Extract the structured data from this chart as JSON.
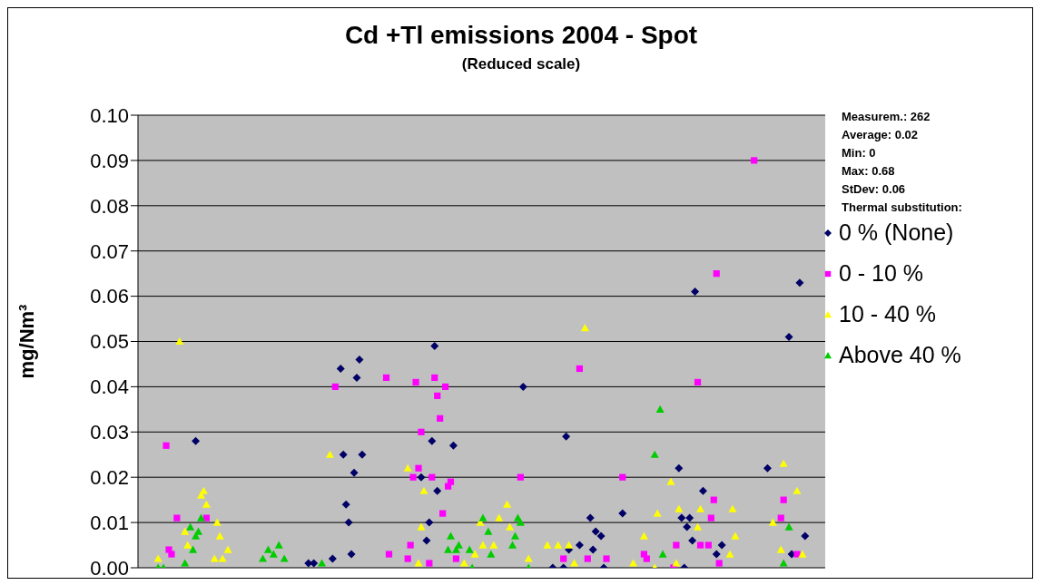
{
  "chart_data": {
    "type": "scatter",
    "title": "Cd +Tl emissions 2004 - Spot",
    "subtitle": "(Reduced scale)",
    "ylabel": "mg/Nm³",
    "legend_title": "Thermal substitution:",
    "annotations": [
      "Measurem.: 262",
      "Average: 0.02",
      "Min: 0",
      "Max: 0.68",
      "StDev: 0.06"
    ],
    "categories": [
      null,
      null,
      null,
      null,
      null,
      null,
      null,
      null,
      null,
      null,
      null,
      null,
      null,
      null,
      null,
      null,
      null,
      null,
      null,
      null,
      null,
      null,
      null,
      null,
      null,
      null,
      null,
      null,
      null,
      null,
      null,
      null,
      null,
      null,
      null,
      null,
      null,
      null,
      null,
      null,
      null,
      null,
      null,
      null,
      null,
      null,
      null,
      null,
      null,
      null,
      null,
      null,
      null,
      null,
      null,
      null,
      null,
      null,
      null,
      null,
      null,
      null,
      null,
      null,
      null,
      null,
      null,
      null,
      null,
      null,
      null,
      null,
      null,
      null,
      null,
      null,
      null,
      null,
      null,
      null,
      null,
      null,
      null,
      null,
      null,
      null,
      null,
      null,
      null,
      null,
      null,
      null,
      null,
      null,
      null,
      null,
      null,
      null,
      null,
      null,
      null,
      null,
      null,
      null,
      null,
      null,
      null,
      null,
      null,
      null,
      null,
      null,
      null,
      null,
      null,
      null,
      null,
      null,
      null,
      null,
      null,
      null,
      null,
      null,
      null,
      null,
      null,
      null,
      null,
      null,
      null,
      null,
      null,
      null,
      null,
      null,
      null,
      null,
      null,
      null,
      null,
      null,
      null,
      null,
      null,
      null,
      null,
      null,
      null,
      null,
      null,
      null,
      null,
      null,
      null,
      null,
      null,
      null,
      null,
      null,
      null,
      null,
      null,
      null,
      null,
      null,
      null,
      null,
      null,
      null,
      null,
      null,
      null,
      null,
      null,
      null,
      null,
      null,
      null,
      null,
      null,
      null,
      null,
      null,
      null,
      null,
      null,
      null,
      null,
      null,
      null,
      null,
      null,
      null,
      null,
      null,
      null,
      null,
      null,
      null,
      null,
      null,
      null,
      null,
      null,
      null,
      null,
      null,
      null,
      null,
      null,
      null,
      null,
      null,
      null,
      null,
      null,
      null,
      null,
      null,
      null,
      null,
      null,
      null,
      null,
      null,
      null,
      null,
      null,
      null,
      null,
      null,
      null,
      null,
      null,
      null,
      null,
      null,
      null,
      null,
      null,
      null,
      null,
      null,
      null,
      null,
      null,
      null,
      null,
      null,
      null,
      null,
      null,
      null,
      null,
      null
    ],
    "series": [
      {
        "name": "0 % (None)",
        "color": "#000066",
        "marker": "diamond",
        "values": [
          null,
          null,
          null,
          null,
          null,
          null,
          null,
          null,
          null,
          null,
          null,
          null,
          null,
          null,
          null,
          null,
          null,
          null,
          null,
          null,
          null,
          0.028,
          null,
          null,
          null,
          null,
          null,
          null,
          null,
          null,
          null,
          null,
          null,
          null,
          null,
          null,
          null,
          null,
          null,
          null,
          null,
          null,
          null,
          null,
          null,
          null,
          null,
          null,
          null,
          null,
          null,
          null,
          null,
          null,
          null,
          null,
          null,
          null,
          null,
          null,
          null,
          null,
          null,
          0.001,
          null,
          0.001,
          null,
          null,
          null,
          null,
          null,
          null,
          0.002,
          null,
          null,
          0.044,
          0.025,
          0.014,
          0.01,
          0.003,
          0.021,
          0.042,
          0.046,
          0.025,
          null,
          null,
          null,
          null,
          null,
          null,
          null,
          null,
          null,
          null,
          null,
          null,
          null,
          null,
          null,
          null,
          null,
          null,
          null,
          null,
          null,
          0.02,
          null,
          0.006,
          0.01,
          0.028,
          0.049,
          0.017,
          null,
          null,
          null,
          null,
          null,
          0.027,
          null,
          null,
          null,
          null,
          null,
          null,
          null,
          null,
          null,
          null,
          null,
          null,
          null,
          null,
          null,
          null,
          null,
          null,
          null,
          null,
          null,
          null,
          null,
          null,
          null,
          0.04,
          null,
          null,
          null,
          null,
          null,
          null,
          null,
          null,
          null,
          null,
          0,
          null,
          null,
          null,
          0,
          0.029,
          0.004,
          null,
          null,
          null,
          0.005,
          null,
          null,
          null,
          0.011,
          0.004,
          0.008,
          null,
          0.007,
          0,
          null,
          null,
          null,
          null,
          null,
          null,
          0.012,
          null,
          null,
          null,
          null,
          null,
          null,
          null,
          null,
          null,
          null,
          null,
          null,
          null,
          null,
          null,
          null,
          null,
          null,
          null,
          null,
          0.022,
          0.011,
          0,
          0.009,
          0.011,
          0.006,
          0.061,
          null,
          null,
          0.017,
          null,
          null,
          null,
          null,
          0.003,
          null,
          0.005,
          null,
          null,
          null,
          null,
          null,
          null,
          null,
          null,
          null,
          null,
          null,
          null,
          null,
          null,
          null,
          null,
          0.022,
          null,
          null,
          null,
          null,
          null,
          null,
          null,
          0.051,
          0.003,
          null,
          null,
          0.063,
          null,
          0.007,
          null,
          null,
          null,
          null,
          null,
          null,
          null
        ]
      },
      {
        "name": "0 - 10 %",
        "color": "#ff00ff",
        "marker": "square",
        "values": [
          null,
          null,
          null,
          null,
          null,
          null,
          null,
          null,
          null,
          null,
          0.027,
          0.004,
          0.003,
          null,
          0.011,
          null,
          null,
          null,
          null,
          null,
          null,
          null,
          null,
          null,
          null,
          0.011,
          null,
          null,
          null,
          null,
          null,
          null,
          null,
          null,
          null,
          null,
          null,
          null,
          null,
          null,
          null,
          null,
          null,
          null,
          null,
          null,
          null,
          null,
          null,
          null,
          null,
          null,
          null,
          null,
          null,
          null,
          null,
          null,
          null,
          null,
          null,
          null,
          null,
          null,
          null,
          null,
          null,
          null,
          null,
          null,
          null,
          null,
          null,
          0.04,
          null,
          null,
          null,
          null,
          null,
          null,
          null,
          null,
          null,
          null,
          null,
          null,
          null,
          null,
          null,
          null,
          null,
          null,
          0.042,
          0.003,
          null,
          null,
          null,
          null,
          null,
          null,
          0.002,
          0.005,
          0.02,
          0.041,
          0.022,
          0.03,
          null,
          null,
          0.001,
          0.02,
          0.042,
          0.038,
          0.033,
          0.012,
          0.04,
          0.018,
          0.019,
          null,
          0.002,
          null,
          null,
          null,
          null,
          null,
          null,
          null,
          null,
          null,
          null,
          null,
          null,
          null,
          null,
          null,
          null,
          null,
          null,
          null,
          null,
          null,
          null,
          null,
          0.02,
          null,
          null,
          null,
          null,
          null,
          null,
          null,
          null,
          null,
          null,
          null,
          null,
          null,
          null,
          null,
          0.002,
          null,
          null,
          null,
          null,
          null,
          0.044,
          null,
          null,
          0.002,
          null,
          null,
          null,
          null,
          null,
          null,
          0.002,
          null,
          null,
          null,
          null,
          null,
          0.02,
          null,
          null,
          null,
          null,
          null,
          null,
          null,
          0.003,
          0.002,
          null,
          null,
          null,
          null,
          null,
          null,
          null,
          null,
          null,
          0,
          0.005,
          null,
          null,
          null,
          null,
          null,
          null,
          null,
          0.041,
          0.005,
          null,
          null,
          0.005,
          0.011,
          0.015,
          0.065,
          0.001,
          null,
          null,
          null,
          null,
          null,
          null,
          null,
          null,
          null,
          null,
          null,
          null,
          0.09,
          null,
          null,
          null,
          null,
          null,
          null,
          null,
          null,
          null,
          0.011,
          0.015,
          null,
          null,
          null,
          null,
          0.003,
          null,
          null,
          null,
          null,
          null,
          null,
          null,
          null,
          null,
          null
        ]
      },
      {
        "name": "10 - 40 %",
        "color": "#ffff00",
        "marker": "triangle",
        "values": [
          null,
          null,
          null,
          null,
          null,
          null,
          null,
          0.002,
          null,
          null,
          null,
          null,
          null,
          null,
          null,
          0.05,
          null,
          0.008,
          0.005,
          null,
          null,
          null,
          null,
          0.016,
          0.017,
          0.014,
          null,
          null,
          0.002,
          0.01,
          0.007,
          0.002,
          null,
          0.004,
          null,
          null,
          null,
          null,
          null,
          null,
          null,
          null,
          null,
          null,
          null,
          null,
          null,
          null,
          null,
          null,
          null,
          null,
          null,
          null,
          null,
          null,
          null,
          null,
          null,
          null,
          null,
          null,
          null,
          null,
          null,
          null,
          null,
          null,
          null,
          null,
          null,
          0.025,
          null,
          null,
          null,
          null,
          null,
          null,
          null,
          null,
          null,
          null,
          null,
          null,
          null,
          null,
          null,
          null,
          null,
          null,
          null,
          null,
          null,
          null,
          null,
          null,
          null,
          null,
          null,
          null,
          0.022,
          null,
          null,
          null,
          0.001,
          0.009,
          0.017,
          null,
          null,
          null,
          null,
          null,
          null,
          null,
          null,
          null,
          null,
          null,
          null,
          null,
          null,
          0.001,
          null,
          null,
          null,
          0.003,
          null,
          0.01,
          0.005,
          null,
          null,
          null,
          0.005,
          null,
          0.011,
          null,
          null,
          0.014,
          0.009,
          null,
          null,
          null,
          null,
          null,
          null,
          0.002,
          null,
          null,
          null,
          null,
          null,
          null,
          0.005,
          null,
          null,
          null,
          0.005,
          null,
          null,
          null,
          0.005,
          null,
          0.001,
          null,
          null,
          null,
          0.053,
          null,
          null,
          null,
          null,
          null,
          null,
          null,
          null,
          null,
          null,
          null,
          null,
          null,
          null,
          null,
          null,
          null,
          0.001,
          null,
          null,
          null,
          0.007,
          null,
          null,
          null,
          0,
          0.012,
          null,
          null,
          null,
          null,
          0.019,
          null,
          0.001,
          0.013,
          null,
          null,
          null,
          null,
          null,
          null,
          0.009,
          0.013,
          null,
          null,
          null,
          null,
          null,
          null,
          null,
          null,
          null,
          null,
          0.003,
          0.013,
          0.007,
          null,
          null,
          null,
          null,
          null,
          null,
          null,
          null,
          null,
          null,
          null,
          null,
          null,
          0.01,
          null,
          null,
          0.004,
          0.023,
          null,
          null,
          null,
          null,
          0.017,
          null,
          0.003,
          null,
          null,
          null,
          null,
          null,
          null,
          null,
          null
        ]
      },
      {
        "name": "Above 40 %",
        "color": "#00cc00",
        "marker": "triangle",
        "values": [
          null,
          null,
          null,
          null,
          null,
          null,
          null,
          0,
          null,
          0,
          null,
          null,
          null,
          null,
          null,
          null,
          null,
          0.001,
          null,
          0.009,
          0.004,
          0.007,
          0.008,
          0.011,
          null,
          null,
          null,
          null,
          null,
          null,
          null,
          null,
          null,
          null,
          null,
          null,
          null,
          null,
          null,
          null,
          null,
          null,
          null,
          null,
          null,
          null,
          0.002,
          null,
          0.004,
          null,
          0.003,
          null,
          0.005,
          null,
          0.002,
          null,
          null,
          null,
          null,
          null,
          null,
          null,
          null,
          null,
          null,
          null,
          null,
          null,
          0.001,
          null,
          null,
          null,
          null,
          null,
          null,
          null,
          null,
          null,
          null,
          null,
          null,
          null,
          null,
          null,
          null,
          null,
          null,
          null,
          null,
          null,
          null,
          null,
          null,
          null,
          null,
          null,
          null,
          null,
          null,
          null,
          null,
          null,
          null,
          null,
          null,
          null,
          null,
          null,
          null,
          null,
          null,
          null,
          null,
          null,
          null,
          0.004,
          0.007,
          null,
          0.004,
          0.005,
          null,
          null,
          null,
          0.004,
          0,
          null,
          null,
          null,
          0.011,
          null,
          0.008,
          0.003,
          null,
          null,
          null,
          null,
          null,
          null,
          null,
          0.005,
          0.007,
          0.011,
          0.01,
          null,
          null,
          0,
          null,
          null,
          null,
          null,
          null,
          null,
          null,
          null,
          null,
          null,
          null,
          null,
          null,
          null,
          null,
          null,
          null,
          null,
          null,
          null,
          null,
          null,
          null,
          null,
          null,
          null,
          null,
          null,
          null,
          null,
          null,
          null,
          null,
          null,
          null,
          null,
          null,
          null,
          null,
          null,
          null,
          null,
          null,
          null,
          null,
          null,
          0.025,
          null,
          0.035,
          0.003,
          null,
          null,
          null,
          null,
          null,
          null,
          null,
          null,
          null,
          null,
          null,
          null,
          null,
          null,
          null,
          null,
          null,
          null,
          null,
          null,
          null,
          null,
          null,
          null,
          null,
          null,
          null,
          null,
          null,
          null,
          null,
          null,
          null,
          null,
          null,
          null,
          null,
          null,
          null,
          null,
          null,
          null,
          null,
          null,
          0.001,
          null,
          0.009,
          null,
          null,
          null,
          null,
          null,
          null,
          null,
          null,
          null,
          null,
          null,
          null,
          null
        ]
      }
    ],
    "ylim": [
      0,
      0.1
    ],
    "yticks": [
      {
        "value": 0,
        "label": "0.00"
      },
      {
        "value": 0.01,
        "label": "0.01"
      },
      {
        "value": 0.02,
        "label": "0.02"
      },
      {
        "value": 0.03,
        "label": "0.03"
      },
      {
        "value": 0.04,
        "label": "0.04"
      },
      {
        "value": 0.05,
        "label": "0.05"
      },
      {
        "value": 0.06,
        "label": "0.06"
      },
      {
        "value": 0.07,
        "label": "0.07"
      },
      {
        "value": 0.08,
        "label": "0.08"
      },
      {
        "value": 0.09,
        "label": "0.09"
      },
      {
        "value": 0.1,
        "label": "0.10"
      }
    ],
    "grid": "y",
    "legend": "right",
    "tick_labels": "y"
  }
}
